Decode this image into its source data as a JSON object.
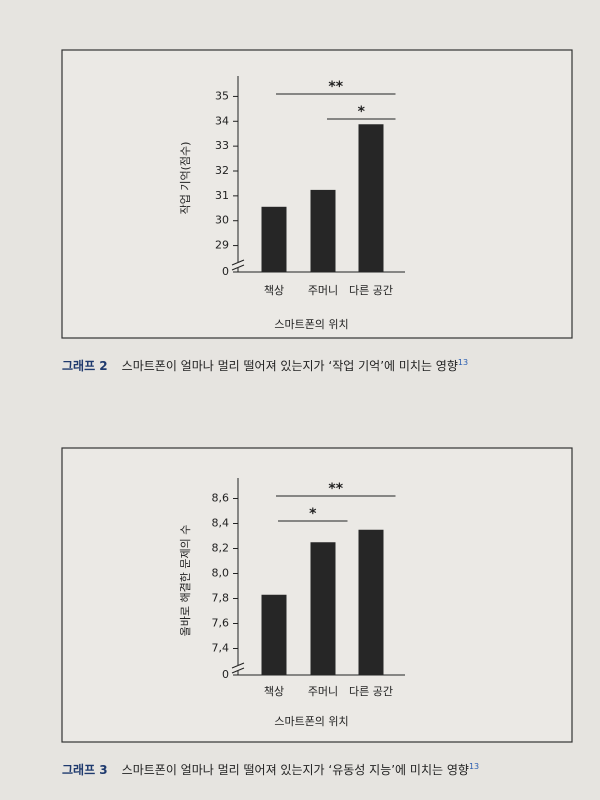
{
  "chart_data": [
    {
      "type": "bar",
      "label": "그래프 2",
      "title": "스마트폰이 얼마나 멀리 떨어져 있는지가 ‘작업 기억’에 미치는 영향",
      "footnote": "13",
      "categories": [
        "책상",
        "주머니",
        "다른 공간"
      ],
      "values": [
        30.56,
        31.24,
        33.88
      ],
      "color": "#262626",
      "xlabel": "스마트폰의 위치",
      "ylabel": "작업 기억(점수)",
      "ylim": [
        0,
        35.5
      ],
      "axis_break": [
        0,
        28.5
      ],
      "yticks": [
        0,
        29,
        30,
        31,
        32,
        33,
        34,
        35
      ],
      "annotations": [
        {
          "text": "**",
          "between": [
            0,
            2
          ]
        },
        {
          "text": "*",
          "between": [
            1,
            2
          ]
        }
      ]
    },
    {
      "type": "bar",
      "label": "그래프 3",
      "title": "스마트폰이 얼마나 멀리 떨어져 있는지가 ‘유동성 지능’에 미치는 영향",
      "footnote": "13",
      "categories": [
        "책상",
        "주머니",
        "다른 공간"
      ],
      "values": [
        7.83,
        8.25,
        8.35
      ],
      "color": "#262626",
      "xlabel": "스마트폰의 위치",
      "ylabel": "올바로 해결한 문제의 수",
      "ylim": [
        0,
        8.7
      ],
      "axis_break": [
        0,
        7.3
      ],
      "yticks": [
        0,
        {
          "value": 7.4,
          "label": "7,4"
        },
        {
          "value": 7.6,
          "label": "7,6"
        },
        {
          "value": 7.8,
          "label": "7,8"
        },
        {
          "value": 8,
          "label": "8,0"
        },
        {
          "value": 8.2,
          "label": "8,2"
        },
        {
          "value": 8.4,
          "label": "8,4"
        },
        {
          "value": 8.6,
          "label": "8,6"
        }
      ],
      "annotations": [
        {
          "text": "**",
          "between": [
            0,
            2
          ]
        },
        {
          "text": "*",
          "between": [
            0,
            1
          ]
        }
      ]
    }
  ]
}
